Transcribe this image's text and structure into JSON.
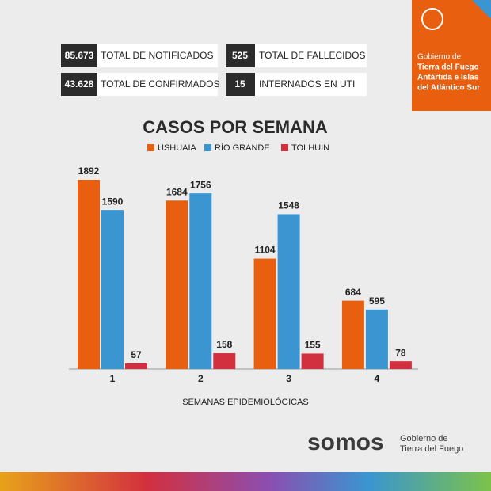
{
  "stats": [
    {
      "value": "85.673",
      "label": "TOTAL DE NOTIFICADOS"
    },
    {
      "value": "43.628",
      "label": "TOTAL DE CONFIRMADOS"
    },
    {
      "value": "525",
      "label": "TOTAL DE FALLECIDOS"
    },
    {
      "value": "15",
      "label": "INTERNADOS EN UTI"
    }
  ],
  "badge": {
    "lines": [
      "Gobierno de",
      "Tierra del Fuego",
      "Antártida e Islas",
      "del Atlántico Sur"
    ]
  },
  "chart_data": {
    "type": "bar",
    "title": "CASOS POR SEMANA",
    "x_label": "SEMANAS EPIDEMIOLÓGICAS",
    "categories": [
      "1",
      "2",
      "3",
      "4"
    ],
    "series": [
      {
        "name": "USHUAIA",
        "color": "#e8600f",
        "values": [
          1892,
          1684,
          1104,
          684
        ]
      },
      {
        "name": "RÍO GRANDE",
        "color": "#3a95d0",
        "values": [
          1590,
          1756,
          1548,
          595
        ]
      },
      {
        "name": "TOLHUIN",
        "color": "#d2303f",
        "values": [
          57,
          158,
          155,
          78
        ]
      }
    ]
  },
  "footer": {
    "brand": "somos",
    "lines": [
      "Gobierno de",
      "Tierra del Fuego"
    ]
  }
}
